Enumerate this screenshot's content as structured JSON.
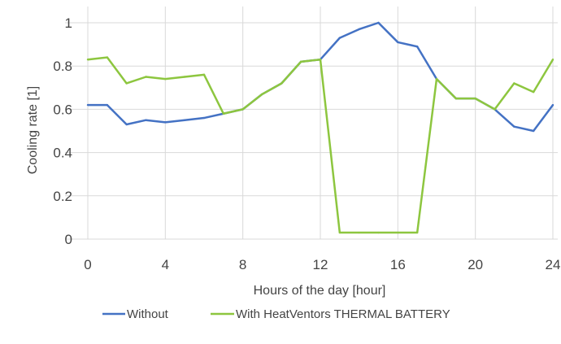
{
  "chart_data": {
    "type": "line",
    "title": "",
    "xlabel": "Hours of the day [hour]",
    "ylabel": "Cooling rate [1]",
    "xlim": [
      0,
      24
    ],
    "ylim": [
      0,
      1
    ],
    "x_ticks": [
      0,
      4,
      8,
      12,
      16,
      20,
      24
    ],
    "y_ticks": [
      0,
      0.2,
      0.4,
      0.6,
      0.8,
      1
    ],
    "x_tick_labels": [
      "0",
      "4",
      "8",
      "12",
      "16",
      "20",
      "24"
    ],
    "y_tick_labels": [
      "0",
      "0.2",
      "0.4",
      "0.6",
      "0.8",
      "1"
    ],
    "grid": true,
    "legend_position": "bottom",
    "x": [
      0,
      1,
      2,
      3,
      4,
      5,
      6,
      7,
      8,
      9,
      10,
      11,
      12,
      13,
      14,
      15,
      16,
      17,
      18,
      19,
      20,
      21,
      22,
      23,
      24
    ],
    "series": [
      {
        "name": "Without",
        "color": "#4472c4",
        "values": [
          0.62,
          0.62,
          0.53,
          0.55,
          0.54,
          0.55,
          0.56,
          0.58,
          0.6,
          0.67,
          0.72,
          0.82,
          0.83,
          0.93,
          0.97,
          1.0,
          0.91,
          0.89,
          0.74,
          0.65,
          0.65,
          0.6,
          0.52,
          0.5,
          0.62
        ]
      },
      {
        "name": "With HeatVentors THERMAL BATTERY",
        "color": "#8dc63f",
        "values": [
          0.83,
          0.84,
          0.72,
          0.75,
          0.74,
          0.75,
          0.76,
          0.58,
          0.6,
          0.67,
          0.72,
          0.82,
          0.83,
          0.03,
          0.03,
          0.03,
          0.03,
          0.03,
          0.74,
          0.65,
          0.65,
          0.6,
          0.72,
          0.68,
          0.83
        ]
      }
    ]
  }
}
